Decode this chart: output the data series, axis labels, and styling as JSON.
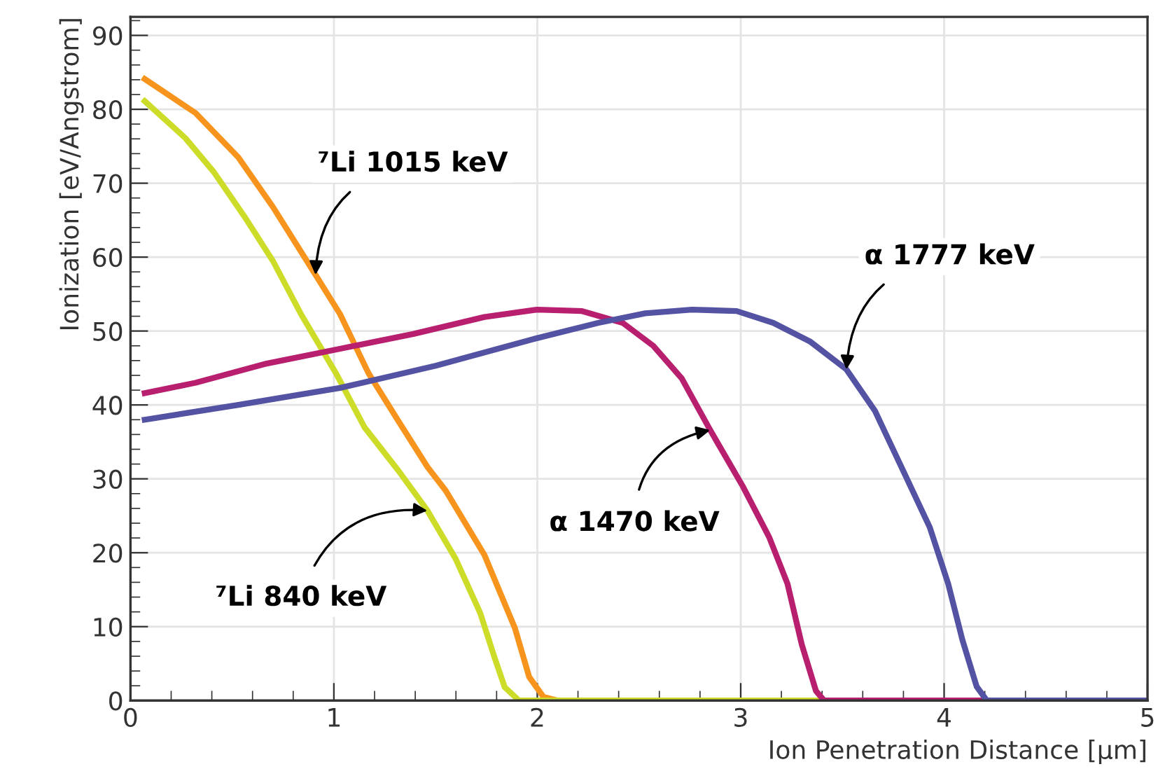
{
  "chart_data": {
    "type": "line",
    "xlabel": "Ion Penetration Distance [μm]",
    "ylabel": "Ionization [eV/Angstrom]",
    "xlim": [
      0,
      5
    ],
    "xticks": [
      0,
      1,
      2,
      3,
      4,
      5
    ],
    "ylim": [
      0,
      92.5
    ],
    "yticks": [
      0,
      10,
      20,
      30,
      40,
      50,
      60,
      70,
      80,
      90
    ],
    "grid": true,
    "marker": "none",
    "line_style": "solid",
    "series": [
      {
        "color": "#f7941d",
        "x": [
          0.07,
          0.32,
          0.53,
          0.7,
          0.91,
          1.03,
          1.17,
          1.32,
          1.46,
          1.55,
          1.74,
          1.89,
          1.96,
          2.03,
          2.1
        ],
        "values": [
          84.1,
          79.5,
          73.5,
          66.8,
          57.6,
          52.3,
          44.3,
          37.7,
          31.6,
          28.4,
          19.7,
          9.8,
          3.2,
          0.5,
          0
        ]
      },
      {
        "color": "#cddc29",
        "x": [
          0.07,
          0.27,
          0.41,
          0.56,
          0.7,
          0.84,
          1.01,
          1.15,
          1.32,
          1.46,
          1.6,
          1.72,
          1.79,
          1.84,
          1.91,
          3.41
        ],
        "values": [
          81.1,
          76.1,
          71.5,
          65.5,
          59.5,
          52.2,
          44.3,
          37.0,
          31.0,
          25.7,
          19.1,
          11.8,
          5.8,
          1.8,
          0,
          0
        ]
      },
      {
        "color": "#b81f6e",
        "x": [
          0.07,
          0.32,
          0.67,
          1.03,
          1.39,
          1.74,
          2.0,
          2.22,
          2.42,
          2.57,
          2.71,
          2.85,
          3.01,
          3.14,
          3.23,
          3.3,
          3.37,
          3.41,
          4.2
        ],
        "values": [
          41.6,
          43.0,
          45.6,
          47.6,
          49.6,
          51.9,
          52.9,
          52.7,
          51.1,
          48.0,
          43.6,
          36.6,
          29.0,
          22.1,
          15.8,
          7.6,
          1.3,
          0,
          0
        ]
      },
      {
        "color": "#5352a3",
        "x": [
          0.07,
          0.53,
          1.03,
          1.5,
          1.98,
          2.3,
          2.53,
          2.76,
          2.98,
          3.16,
          3.34,
          3.52,
          3.66,
          3.79,
          3.93,
          4.02,
          4.09,
          4.16,
          4.21,
          5.0
        ],
        "values": [
          38.0,
          40.0,
          42.3,
          45.3,
          48.9,
          51.1,
          52.4,
          52.9,
          52.7,
          51.1,
          48.6,
          44.8,
          39.2,
          31.6,
          23.4,
          15.8,
          8.2,
          1.9,
          0,
          0
        ]
      }
    ],
    "annotations": [
      {
        "text": "⁷Li 1015 keV",
        "x": 0.91,
        "y": 57.6
      },
      {
        "text": "⁷Li 840 keV",
        "x": 1.46,
        "y": 25.7
      },
      {
        "text": "α 1470 keV",
        "x": 2.85,
        "y": 36.6
      },
      {
        "text": "α 1777 keV",
        "x": 3.52,
        "y": 44.8
      }
    ]
  }
}
